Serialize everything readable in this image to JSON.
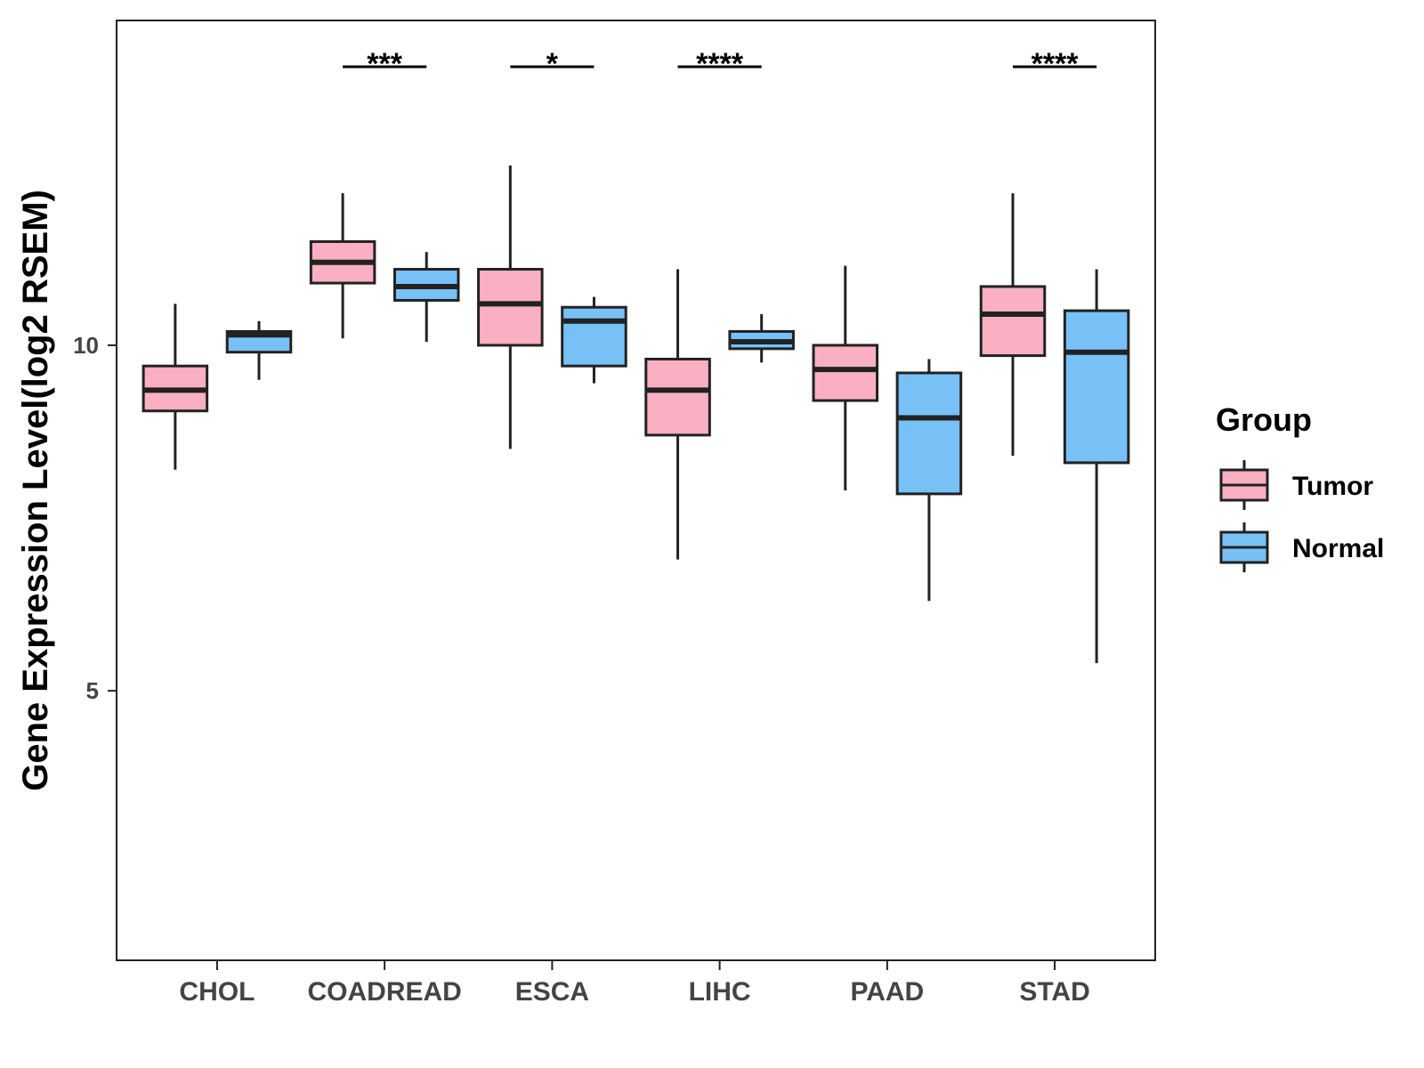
{
  "chart_data": {
    "type": "boxplot",
    "title": "",
    "xlabel": "",
    "ylabel": "Gene Expression Level(log2 RSEM)",
    "ylim": [
      1.1,
      14.7
    ],
    "yticks": [
      5,
      10
    ],
    "categories": [
      "CHOL",
      "COADREAD",
      "ESCA",
      "LIHC",
      "PAAD",
      "STAD"
    ],
    "legend": {
      "title": "Group",
      "position": "right",
      "entries": [
        {
          "name": "Tumor",
          "color": "#FAB0C2"
        },
        {
          "name": "Normal",
          "color": "#78C1F7"
        }
      ]
    },
    "series": [
      {
        "name": "Tumor",
        "color": "#FAB0C2",
        "boxes": [
          {
            "min": 8.2,
            "q1": 9.05,
            "median": 9.35,
            "q3": 9.7,
            "max": 10.6
          },
          {
            "min": 10.1,
            "q1": 10.9,
            "median": 11.2,
            "q3": 11.5,
            "max": 12.2
          },
          {
            "min": 8.5,
            "q1": 10.0,
            "median": 10.6,
            "q3": 11.1,
            "max": 12.6
          },
          {
            "min": 6.9,
            "q1": 8.7,
            "median": 9.35,
            "q3": 9.8,
            "max": 11.1
          },
          {
            "min": 7.9,
            "q1": 9.2,
            "median": 9.65,
            "q3": 10.0,
            "max": 11.15
          },
          {
            "min": 8.4,
            "q1": 9.85,
            "median": 10.45,
            "q3": 10.85,
            "max": 12.2
          }
        ]
      },
      {
        "name": "Normal",
        "color": "#78C1F7",
        "boxes": [
          {
            "min": 9.5,
            "q1": 9.9,
            "median": 10.15,
            "q3": 10.2,
            "max": 10.35
          },
          {
            "min": 10.05,
            "q1": 10.65,
            "median": 10.85,
            "q3": 11.1,
            "max": 11.35
          },
          {
            "min": 9.45,
            "q1": 9.7,
            "median": 10.35,
            "q3": 10.55,
            "max": 10.7
          },
          {
            "min": 9.75,
            "q1": 9.95,
            "median": 10.05,
            "q3": 10.2,
            "max": 10.45
          },
          {
            "min": 6.3,
            "q1": 7.85,
            "median": 8.95,
            "q3": 9.6,
            "max": 9.8
          },
          {
            "min": 5.4,
            "q1": 8.3,
            "median": 9.9,
            "q3": 10.5,
            "max": 11.1
          }
        ]
      }
    ],
    "annotations": [
      {
        "category": "COADREAD",
        "label": "***"
      },
      {
        "category": "ESCA",
        "label": "*"
      },
      {
        "category": "LIHC",
        "label": "****"
      },
      {
        "category": "STAD",
        "label": "****"
      }
    ]
  }
}
